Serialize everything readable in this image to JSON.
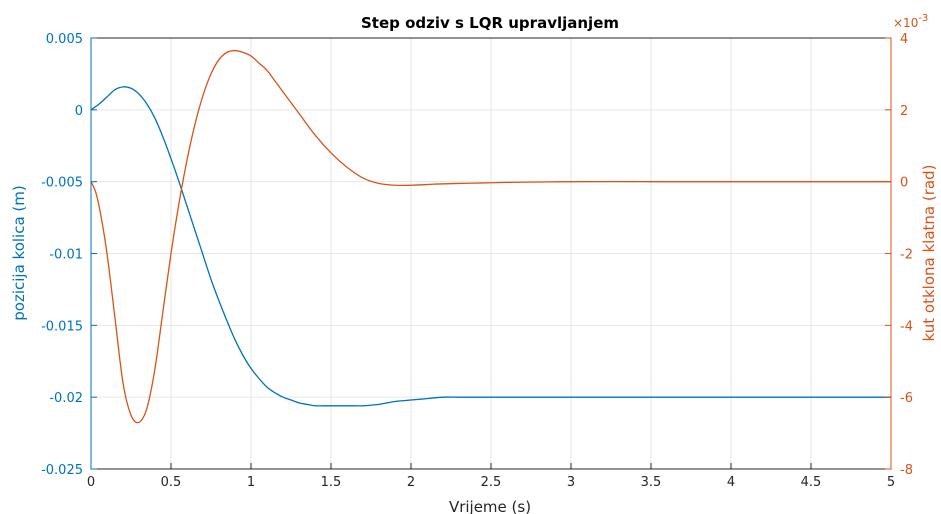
{
  "chart_data": {
    "type": "line",
    "title": "Step odziv s LQR upravljanjem",
    "xlabel": "Vrijeme (s)",
    "ylabel_left": "pozicija kolica (m)",
    "ylabel_right": "kut otklona klatna (rad)",
    "right_exponent_base": "×10",
    "right_exponent_power": "-3",
    "xlim": [
      0,
      5
    ],
    "ylim_left": [
      -0.025,
      0.005
    ],
    "ylim_right": [
      -8,
      4
    ],
    "grid": true,
    "x_ticks": [
      "0",
      "0.5",
      "1",
      "1.5",
      "2",
      "2.5",
      "3",
      "3.5",
      "4",
      "4.5",
      "5"
    ],
    "y_left_ticks": [
      "0.005",
      "0",
      "-0.005",
      "-0.01",
      "-0.015",
      "-0.02",
      "-0.025"
    ],
    "y_right_ticks": [
      "4",
      "2",
      "0",
      "-2",
      "-4",
      "-6",
      "-8"
    ],
    "colors": {
      "left_axis": "#0072BD",
      "right_axis": "#D95319",
      "grid": "#e6e6e6",
      "frame": "#262626"
    },
    "series": [
      {
        "axis": "left",
        "color": "#0072BD",
        "x": [
          0,
          0.05,
          0.1,
          0.15,
          0.2,
          0.25,
          0.3,
          0.35,
          0.4,
          0.45,
          0.5,
          0.55,
          0.6,
          0.65,
          0.7,
          0.75,
          0.8,
          0.85,
          0.9,
          0.95,
          1.0,
          1.05,
          1.1,
          1.15,
          1.2,
          1.25,
          1.3,
          1.35,
          1.4,
          1.45,
          1.5,
          1.55,
          1.6,
          1.65,
          1.7,
          1.8,
          1.9,
          2.0,
          2.1,
          2.2,
          2.3,
          2.4,
          2.5,
          2.6,
          2.8,
          3.0,
          3.5,
          4.0,
          4.5,
          5.0
        ],
        "y": [
          0,
          0.0004,
          0.0009,
          0.0014,
          0.0016,
          0.0015,
          0.0011,
          0.0004,
          -0.0006,
          -0.0019,
          -0.0034,
          -0.005,
          -0.0067,
          -0.0084,
          -0.0101,
          -0.0118,
          -0.0133,
          -0.0147,
          -0.016,
          -0.0171,
          -0.018,
          -0.0187,
          -0.0193,
          -0.0197,
          -0.02,
          -0.0202,
          -0.0204,
          -0.0205,
          -0.0206,
          -0.0206,
          -0.0206,
          -0.0206,
          -0.0206,
          -0.0206,
          -0.0206,
          -0.0205,
          -0.0203,
          -0.0202,
          -0.0201,
          -0.02,
          -0.02,
          -0.02,
          -0.02,
          -0.02,
          -0.02,
          -0.02,
          -0.02,
          -0.02,
          -0.02,
          -0.02
        ]
      },
      {
        "axis": "right",
        "color": "#D95319",
        "x": [
          0,
          0.03,
          0.06,
          0.1,
          0.15,
          0.2,
          0.25,
          0.3,
          0.35,
          0.4,
          0.45,
          0.5,
          0.55,
          0.6,
          0.65,
          0.7,
          0.75,
          0.8,
          0.85,
          0.9,
          0.95,
          1.0,
          1.05,
          1.1,
          1.15,
          1.2,
          1.3,
          1.4,
          1.5,
          1.6,
          1.7,
          1.8,
          1.9,
          2.0,
          2.1,
          2.2,
          2.3,
          2.4,
          2.5,
          2.6,
          2.8,
          3.0,
          3.5,
          4.0,
          4.5,
          5.0
        ],
        "y": [
          0,
          -0.3,
          -0.9,
          -2.0,
          -3.8,
          -5.6,
          -6.5,
          -6.7,
          -6.3,
          -5.2,
          -3.6,
          -2.0,
          -0.6,
          0.6,
          1.6,
          2.4,
          3.0,
          3.4,
          3.6,
          3.65,
          3.6,
          3.5,
          3.3,
          3.1,
          2.8,
          2.5,
          1.9,
          1.3,
          0.8,
          0.4,
          0.1,
          -0.05,
          -0.1,
          -0.1,
          -0.08,
          -0.06,
          -0.05,
          -0.04,
          -0.03,
          -0.02,
          -0.01,
          0,
          0,
          0,
          0,
          0
        ]
      }
    ]
  }
}
